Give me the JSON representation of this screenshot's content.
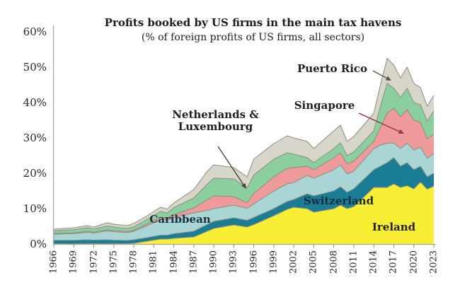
{
  "title": "Profits booked by US firms in the main tax havens",
  "subtitle": "(% of foreign profits of US firms, all sectors)",
  "y_axis": {
    "tick_labels": [
      "60%",
      "50%",
      "40%",
      "30%",
      "20%",
      "10%",
      "0%"
    ]
  },
  "x_axis": {
    "tick_labels": [
      "1966",
      "1969",
      "1972",
      "1975",
      "1978",
      "1981",
      "1984",
      "1987",
      "1990",
      "1993",
      "1996",
      "1999",
      "2002",
      "2005",
      "2008",
      "2011",
      "2014",
      "2017",
      "2020",
      "2023"
    ]
  },
  "annotations": {
    "puerto_rico": {
      "label": "Puerto Rico",
      "arrow_color": "#55544a"
    },
    "singapore": {
      "label": "Singapore",
      "arrow_color": "#8f3b42"
    },
    "netherlands_luxembourg": {
      "line1": "Netherlands &",
      "line2": "Luxembourg",
      "arrow_color": "#44443c"
    },
    "caribbean": {
      "label": "Caribbean"
    },
    "switzerland": {
      "label": "Switzerland"
    },
    "ireland": {
      "label": "Ireland"
    }
  },
  "chart_data": {
    "type": "area",
    "stacked": true,
    "title": "Profits booked by US firms in the main tax havens",
    "subtitle": "(% of foreign profits of US firms, all sectors)",
    "xlabel": "",
    "ylabel": "",
    "ylim": [
      0,
      60
    ],
    "xlim": [
      1966,
      2023
    ],
    "grid": false,
    "legend": "in-chart labels with arrows",
    "outline_color": "#8c8c82",
    "axis_color": "#a9a9a1",
    "tick_color": "#8f8f87",
    "x": [
      1966,
      1969,
      1971,
      1972,
      1974,
      1975,
      1977,
      1978,
      1980,
      1982,
      1983,
      1984,
      1987,
      1989,
      1990,
      1993,
      1995,
      1996,
      1999,
      2001,
      2002,
      2004,
      2005,
      2008,
      2009,
      2010,
      2011,
      2014,
      2015,
      2016,
      2017,
      2018,
      2019,
      2020,
      2021,
      2022,
      2023
    ],
    "series": [
      {
        "name": "Ireland",
        "color": "#f8ee33",
        "values": [
          0.05,
          0.05,
          0.1,
          0.1,
          0.1,
          0.1,
          0.1,
          0.2,
          0.8,
          1.4,
          1.4,
          1.6,
          2.0,
          3.6,
          4.4,
          5.4,
          4.8,
          5.5,
          8.0,
          9.8,
          10.4,
          10.0,
          9.0,
          10.0,
          11.0,
          10.0,
          10.6,
          16.0,
          16.0,
          16.0,
          17.0,
          16.0,
          16.5,
          15.6,
          17.5,
          15.5,
          16.4
        ]
      },
      {
        "name": "Switzerland",
        "color": "#1a7d95",
        "values": [
          1.0,
          1.0,
          1.1,
          1.0,
          1.1,
          1.0,
          0.9,
          1.0,
          1.0,
          1.1,
          1.1,
          1.3,
          1.6,
          1.9,
          2.0,
          2.0,
          1.9,
          2.0,
          2.0,
          2.2,
          2.2,
          4.2,
          4.6,
          5.0,
          5.2,
          4.6,
          5.0,
          5.0,
          6.0,
          7.0,
          7.4,
          6.0,
          6.5,
          5.4,
          4.5,
          3.5,
          3.6
        ]
      },
      {
        "name": "Caribbean",
        "color": "#a9d6d5",
        "values": [
          1.7,
          1.9,
          2.1,
          2.0,
          2.5,
          2.4,
          2.2,
          2.4,
          3.4,
          4.5,
          4.2,
          4.6,
          5.2,
          4.0,
          3.6,
          3.6,
          3.4,
          3.8,
          5.0,
          5.0,
          4.8,
          5.2,
          5.0,
          6.0,
          6.2,
          5.2,
          5.0,
          6.0,
          6.0,
          5.5,
          4.2,
          5.0,
          5.5,
          5.6,
          5.4,
          5.2,
          5.6
        ]
      },
      {
        "name": "Singapore",
        "color": "#ef9a9b",
        "values": [
          0.2,
          0.2,
          0.3,
          0.25,
          0.3,
          0.3,
          0.3,
          0.3,
          0.5,
          0.6,
          0.6,
          0.8,
          1.4,
          3.0,
          3.6,
          2.4,
          1.6,
          3.0,
          4.0,
          4.4,
          4.2,
          2.6,
          2.4,
          3.4,
          3.4,
          2.8,
          2.8,
          2.0,
          5.0,
          8.5,
          9.8,
          9.0,
          9.5,
          8.4,
          7.0,
          5.6,
          5.4
        ]
      },
      {
        "name": "Netherlands & Luxembourg",
        "color": "#8ccf9f",
        "values": [
          0.8,
          0.9,
          1.0,
          0.9,
          1.1,
          1.0,
          0.9,
          1.0,
          1.3,
          1.6,
          1.5,
          2.0,
          2.8,
          4.4,
          5.0,
          5.0,
          4.2,
          5.2,
          5.0,
          4.4,
          3.8,
          2.4,
          2.0,
          2.6,
          2.8,
          2.4,
          2.6,
          3.0,
          6.0,
          8.5,
          5.6,
          5.5,
          6.0,
          5.0,
          5.0,
          5.0,
          6.6
        ]
      },
      {
        "name": "Puerto Rico",
        "color": "#d8d5ca",
        "values": [
          0.45,
          0.55,
          0.6,
          0.55,
          0.9,
          0.8,
          0.8,
          0.9,
          1.0,
          1.2,
          1.1,
          1.3,
          2.4,
          3.6,
          3.8,
          3.2,
          3.1,
          4.5,
          4.4,
          4.8,
          4.6,
          4.6,
          4.0,
          5.0,
          5.0,
          4.0,
          4.4,
          5.0,
          6.0,
          7.0,
          6.6,
          5.5,
          6.0,
          5.4,
          4.8,
          4.2,
          4.4
        ]
      }
    ]
  }
}
